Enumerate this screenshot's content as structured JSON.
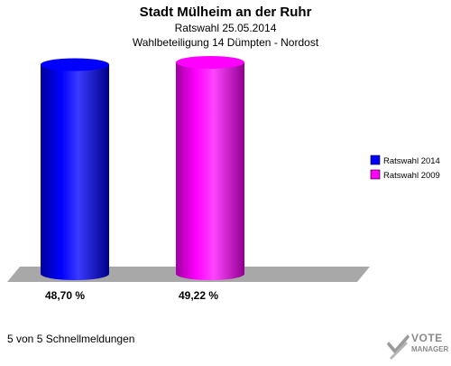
{
  "chart_data": {
    "type": "bar",
    "title": "Stadt Mülheim an der Ruhr",
    "subtitles": [
      "Ratswahl 25.05.2014",
      "Wahlbeteiligung 14 Dümpten - Nordost"
    ],
    "categories": [
      "Ratswahl 2014",
      "Ratswahl 2009"
    ],
    "values": [
      48.7,
      49.22
    ],
    "value_labels": [
      "48,70 %",
      "49,22 %"
    ],
    "ylim": [
      0,
      55
    ],
    "grid": false,
    "legend": {
      "position": "right",
      "entries": [
        {
          "label": "Ratswahl 2014",
          "color": "#0000ff"
        },
        {
          "label": "Ratswahl 2009",
          "color": "#ff00ff"
        }
      ]
    },
    "colors": [
      "#0000ff",
      "#ff00ff"
    ]
  },
  "footer": {
    "text": "5 von 5 Schnellmeldungen"
  },
  "brand": {
    "name": "VOTE",
    "sub": "MANAGER",
    "icon": "vote-manager-logo-icon"
  }
}
